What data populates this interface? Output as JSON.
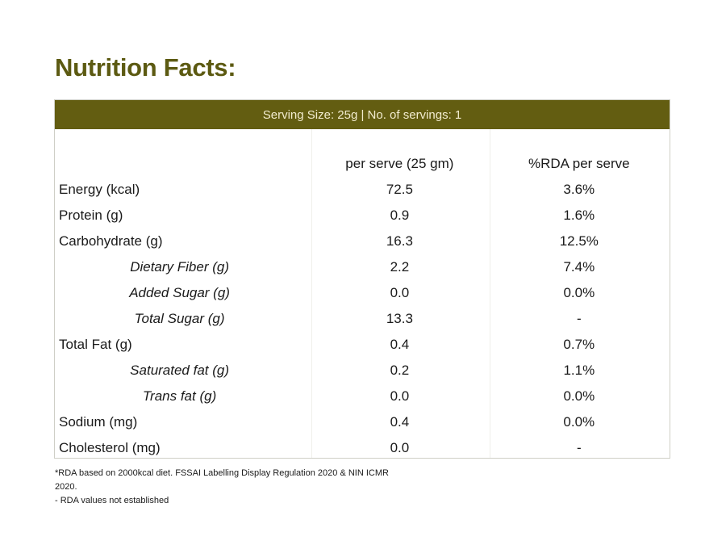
{
  "title": "Nutrition Facts:",
  "serving_info": "Serving Size: 25g | No. of servings: 1",
  "columns": {
    "label": "",
    "per_serve": "per serve (25 gm)",
    "rda": "%RDA per serve"
  },
  "rows": [
    {
      "label": "Energy (kcal)",
      "per_serve": "72.5",
      "rda": "3.6%",
      "sub": false
    },
    {
      "label": "Protein (g)",
      "per_serve": "0.9",
      "rda": "1.6%",
      "sub": false
    },
    {
      "label": "Carbohydrate (g)",
      "per_serve": "16.3",
      "rda": "12.5%",
      "sub": false
    },
    {
      "label": "Dietary Fiber (g)",
      "per_serve": "2.2",
      "rda": "7.4%",
      "sub": true
    },
    {
      "label": "Added Sugar (g)",
      "per_serve": "0.0",
      "rda": "0.0%",
      "sub": true
    },
    {
      "label": "Total Sugar (g)",
      "per_serve": "13.3",
      "rda": "-",
      "sub": true
    },
    {
      "label": "Total Fat (g)",
      "per_serve": "0.4",
      "rda": "0.7%",
      "sub": false
    },
    {
      "label": "Saturated fat (g)",
      "per_serve": "0.2",
      "rda": "1.1%",
      "sub": true
    },
    {
      "label": "Trans fat (g)",
      "per_serve": "0.0",
      "rda": "0.0%",
      "sub": true
    },
    {
      "label": "Sodium (mg)",
      "per_serve": "0.4",
      "rda": "0.0%",
      "sub": false
    },
    {
      "label": "Cholesterol (mg)",
      "per_serve": "0.0",
      "rda": "-",
      "sub": false
    }
  ],
  "footnotes": [
    "*RDA based on 2000kcal diet. FSSAI Labelling Display Regulation 2020 & NIN ICMR 2020.",
    "- RDA values not established"
  ],
  "colors": {
    "accent": "#635d11",
    "title": "#5c5a12",
    "serving_text": "#f2eccf"
  }
}
